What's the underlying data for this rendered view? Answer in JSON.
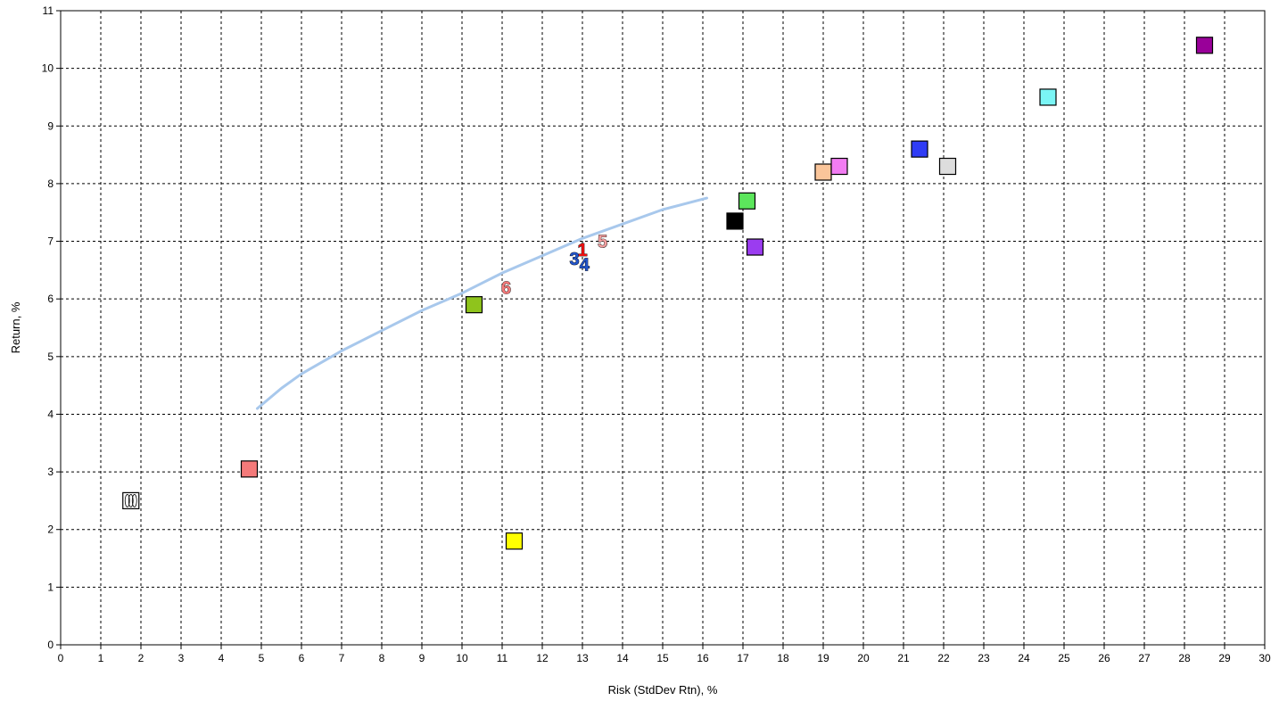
{
  "chart_data": {
    "type": "scatter",
    "title": "",
    "xlabel": "Risk (StdDev Rtn), %",
    "ylabel": "Return, %",
    "xlim": [
      0,
      30
    ],
    "ylim": [
      0,
      11
    ],
    "x_ticks": [
      "0",
      "1",
      "2",
      "3",
      "4",
      "5",
      "6",
      "7",
      "8",
      "9",
      "10",
      "11",
      "12",
      "13",
      "14",
      "15",
      "16",
      "17",
      "18",
      "19",
      "20",
      "21",
      "22",
      "23",
      "24",
      "25",
      "26",
      "27",
      "28",
      "29",
      "30"
    ],
    "y_ticks": [
      "0",
      "1",
      "2",
      "3",
      "4",
      "5",
      "6",
      "7",
      "8",
      "9",
      "10",
      "11"
    ],
    "grid": true,
    "frontier": {
      "color": "#a8c8ec",
      "points": [
        [
          4.9,
          4.1
        ],
        [
          5.5,
          4.45
        ],
        [
          6.0,
          4.7
        ],
        [
          7.0,
          5.1
        ],
        [
          8.0,
          5.45
        ],
        [
          9.0,
          5.8
        ],
        [
          10.0,
          6.1
        ],
        [
          11.0,
          6.45
        ],
        [
          12.0,
          6.75
        ],
        [
          13.0,
          7.05
        ],
        [
          14.0,
          7.3
        ],
        [
          15.0,
          7.55
        ],
        [
          16.1,
          7.75
        ]
      ]
    },
    "squares": [
      {
        "x": 1.75,
        "y": 2.5,
        "color": "#ffffff",
        "hatched": true
      },
      {
        "x": 4.7,
        "y": 3.05,
        "color": "#f47a7a"
      },
      {
        "x": 10.3,
        "y": 5.9,
        "color": "#8fc41c"
      },
      {
        "x": 11.3,
        "y": 1.8,
        "color": "#ffff00"
      },
      {
        "x": 16.8,
        "y": 7.35,
        "color": "#000000"
      },
      {
        "x": 17.1,
        "y": 7.7,
        "color": "#5ce65c"
      },
      {
        "x": 17.3,
        "y": 6.9,
        "color": "#9b3cf0"
      },
      {
        "x": 19.0,
        "y": 8.2,
        "color": "#fac59a"
      },
      {
        "x": 19.4,
        "y": 8.3,
        "color": "#f27cf2"
      },
      {
        "x": 21.4,
        "y": 8.6,
        "color": "#2f3cf5"
      },
      {
        "x": 22.1,
        "y": 8.3,
        "color": "#dddddd"
      },
      {
        "x": 24.6,
        "y": 9.5,
        "color": "#7af5f5"
      },
      {
        "x": 28.5,
        "y": 10.4,
        "color": "#990099"
      }
    ],
    "labeled_points": [
      {
        "label": "1",
        "x": 13.0,
        "y": 6.85,
        "color": "#ee1111"
      },
      {
        "label": "3",
        "x": 12.8,
        "y": 6.7,
        "color": "#2255cc"
      },
      {
        "label": "4",
        "x": 13.05,
        "y": 6.6,
        "color": "#2255cc"
      },
      {
        "label": "5",
        "x": 13.5,
        "y": 7.0,
        "color": "#f4a0a0"
      },
      {
        "label": "6",
        "x": 11.1,
        "y": 6.2,
        "color": "#f47a7a"
      }
    ]
  }
}
